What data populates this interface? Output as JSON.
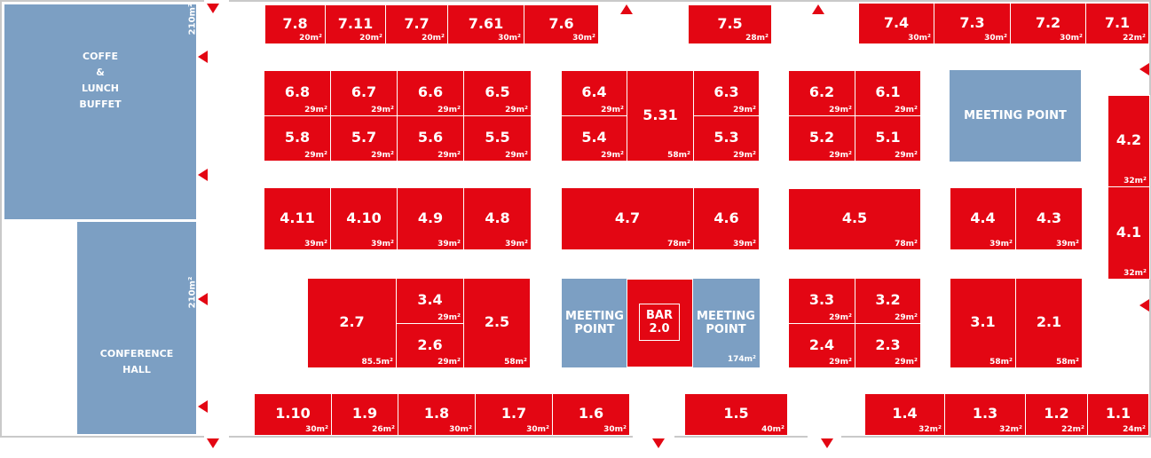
{
  "colors": {
    "booth": "#e30613",
    "common_area": "#7c9fc3",
    "wall": "#c9c9c9"
  },
  "areas": {
    "coffee": {
      "label": "COFFE\n&\nLUNCH\nBUFFET",
      "size": "210m²"
    },
    "conference": {
      "label": "CONFERENCE\nHALL",
      "size": "210m²"
    }
  },
  "meeting_points": {
    "right": "MEETING POINT",
    "bar_left": "MEETING\nPOINT",
    "bar_right": "MEETING\nPOINT",
    "bar_right_size": "174m²"
  },
  "bar": {
    "label": "BAR\n2.0"
  },
  "booths": [
    {
      "id": "7.8",
      "size": "20m²"
    },
    {
      "id": "7.11",
      "size": "20m²"
    },
    {
      "id": "7.7",
      "size": "20m²"
    },
    {
      "id": "7.61",
      "size": "30m²"
    },
    {
      "id": "7.6",
      "size": "30m²"
    },
    {
      "id": "7.5",
      "size": "28m²"
    },
    {
      "id": "7.4",
      "size": "30m²"
    },
    {
      "id": "7.3",
      "size": "30m²"
    },
    {
      "id": "7.2",
      "size": "30m²"
    },
    {
      "id": "7.1",
      "size": "22m²"
    },
    {
      "id": "6.8",
      "size": "29m²"
    },
    {
      "id": "6.7",
      "size": "29m²"
    },
    {
      "id": "6.6",
      "size": "29m²"
    },
    {
      "id": "6.5",
      "size": "29m²"
    },
    {
      "id": "5.8",
      "size": "29m²"
    },
    {
      "id": "5.7",
      "size": "29m²"
    },
    {
      "id": "5.6",
      "size": "29m²"
    },
    {
      "id": "5.5",
      "size": "29m²"
    },
    {
      "id": "6.4",
      "size": "29m²"
    },
    {
      "id": "5.4",
      "size": "29m²"
    },
    {
      "id": "5.31",
      "size": "58m²"
    },
    {
      "id": "6.3",
      "size": "29m²"
    },
    {
      "id": "5.3",
      "size": "29m²"
    },
    {
      "id": "6.2",
      "size": "29m²"
    },
    {
      "id": "6.1",
      "size": "29m²"
    },
    {
      "id": "5.2",
      "size": "29m²"
    },
    {
      "id": "5.1",
      "size": "29m²"
    },
    {
      "id": "4.2",
      "size": "32m²"
    },
    {
      "id": "4.1",
      "size": "32m²"
    },
    {
      "id": "4.11",
      "size": "39m²"
    },
    {
      "id": "4.10",
      "size": "39m²"
    },
    {
      "id": "4.9",
      "size": "39m²"
    },
    {
      "id": "4.8",
      "size": "39m²"
    },
    {
      "id": "4.7",
      "size": "78m²"
    },
    {
      "id": "4.6",
      "size": "39m²"
    },
    {
      "id": "4.5",
      "size": "78m²"
    },
    {
      "id": "4.4",
      "size": "39m²"
    },
    {
      "id": "4.3",
      "size": "39m²"
    },
    {
      "id": "2.7",
      "size": "85.5m²"
    },
    {
      "id": "3.4",
      "size": "29m²"
    },
    {
      "id": "2.6",
      "size": "29m²"
    },
    {
      "id": "2.5",
      "size": "58m²"
    },
    {
      "id": "3.3",
      "size": "29m²"
    },
    {
      "id": "3.2",
      "size": "29m²"
    },
    {
      "id": "2.4",
      "size": "29m²"
    },
    {
      "id": "2.3",
      "size": "29m²"
    },
    {
      "id": "3.1",
      "size": "58m²"
    },
    {
      "id": "2.1",
      "size": "58m²"
    },
    {
      "id": "1.10",
      "size": "30m²"
    },
    {
      "id": "1.9",
      "size": "26m²"
    },
    {
      "id": "1.8",
      "size": "30m²"
    },
    {
      "id": "1.7",
      "size": "30m²"
    },
    {
      "id": "1.6",
      "size": "30m²"
    },
    {
      "id": "1.5",
      "size": "40m²"
    },
    {
      "id": "1.4",
      "size": "32m²"
    },
    {
      "id": "1.3",
      "size": "32m²"
    },
    {
      "id": "1.2",
      "size": "22m²"
    },
    {
      "id": "1.1",
      "size": "24m²"
    }
  ]
}
